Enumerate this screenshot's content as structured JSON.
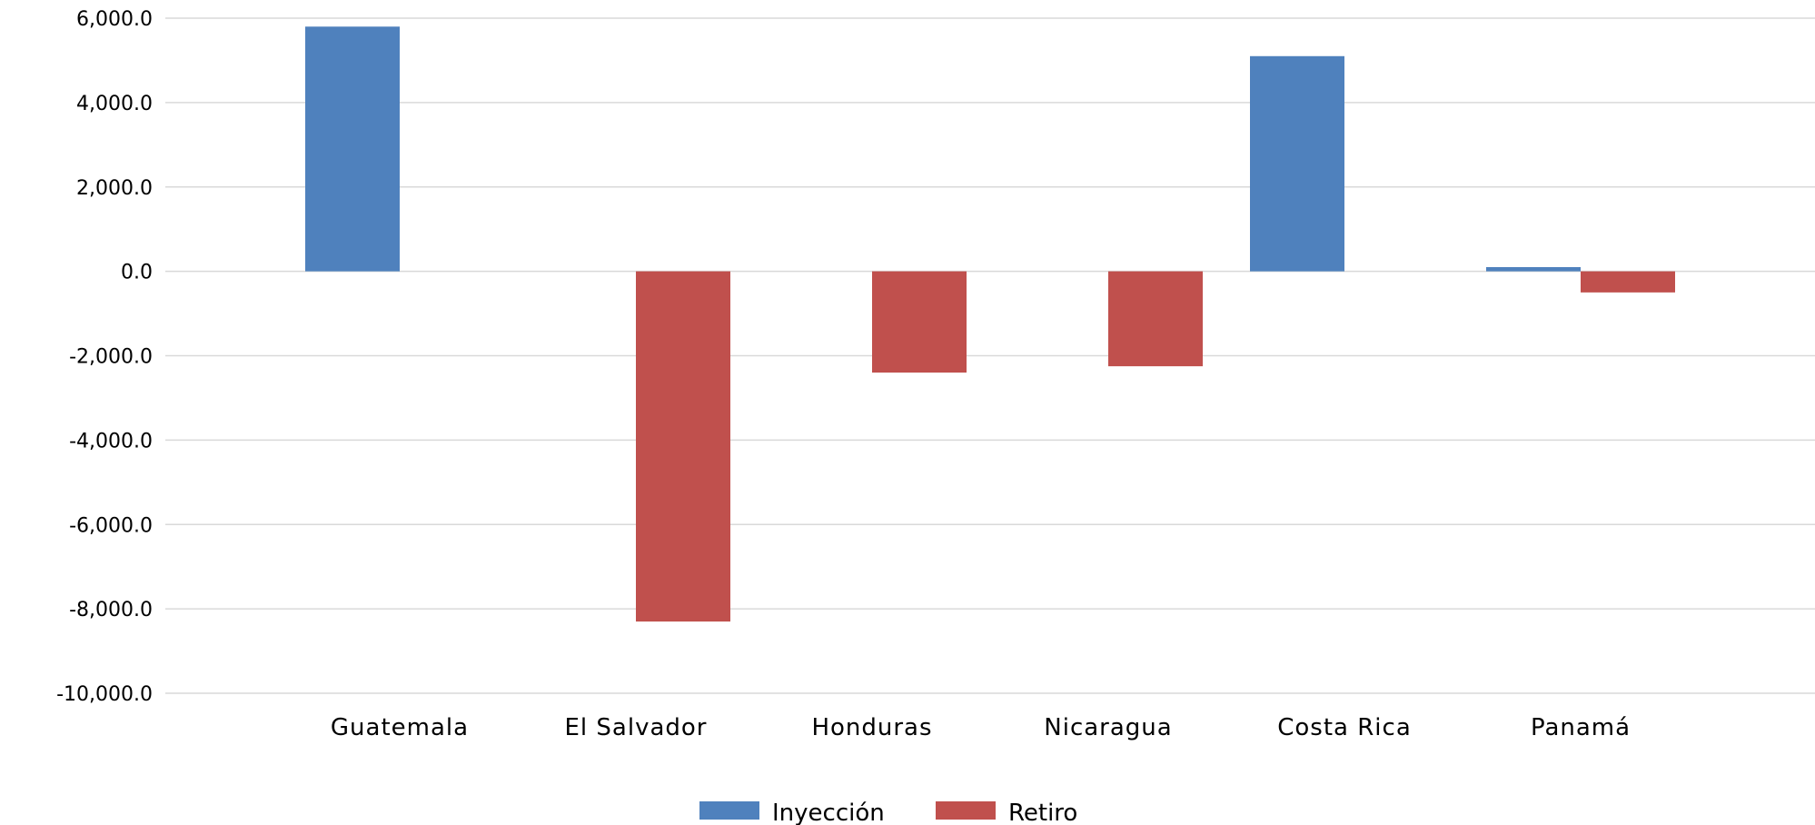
{
  "chart_data": {
    "type": "bar",
    "categories": [
      "Guatemala",
      "El Salvador",
      "Honduras",
      "Nicaragua",
      "Costa Rica",
      "Panamá"
    ],
    "series": [
      {
        "name": "Inyección",
        "color": "#4F81BD",
        "values": [
          5800,
          0,
          0,
          0,
          5100,
          100
        ]
      },
      {
        "name": "Retiro",
        "color": "#C0504D",
        "values": [
          0,
          -8300,
          -2400,
          -2250,
          0,
          -500
        ]
      }
    ],
    "ylim": [
      -10000,
      6000
    ],
    "yticks": [
      "6,000.0",
      "4,000.0",
      "2,000.0",
      "0.0",
      "-2,000.0",
      "-4,000.0",
      "-6,000.0",
      "-8,000.0",
      "-10,000.0"
    ],
    "ytick_values": [
      6000,
      4000,
      2000,
      0,
      -2000,
      -4000,
      -6000,
      -8000,
      -10000
    ],
    "grid": true,
    "legend_position": "bottom"
  }
}
